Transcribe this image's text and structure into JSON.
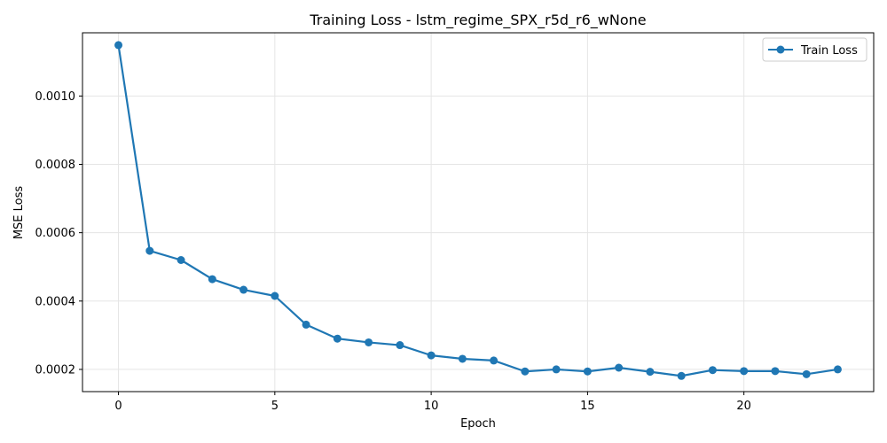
{
  "chart_data": {
    "type": "line",
    "title": "Training Loss - lstm_regime_SPX_r5d_r6_wNone",
    "xlabel": "Epoch",
    "ylabel": "MSE Loss",
    "xlim": [
      -1.15,
      24.15
    ],
    "ylim": [
      0.000135,
      0.001185
    ],
    "x_ticks": [
      0,
      5,
      10,
      15,
      20
    ],
    "y_ticks": [
      0.0002,
      0.0004,
      0.0006,
      0.0008,
      0.001
    ],
    "y_tick_labels": [
      "0.0002",
      "0.0004",
      "0.0006",
      "0.0008",
      "0.0010"
    ],
    "grid": true,
    "legend_position": "top-right",
    "series": [
      {
        "name": "Train Loss",
        "color": "#1f77b4",
        "x": [
          0,
          1,
          2,
          3,
          4,
          5,
          6,
          7,
          8,
          9,
          10,
          11,
          12,
          13,
          14,
          15,
          16,
          17,
          18,
          19,
          20,
          21,
          22,
          23
        ],
        "y": [
          0.001149,
          0.000547,
          0.00052,
          0.000464,
          0.000433,
          0.000415,
          0.000331,
          0.00029,
          0.000279,
          0.000271,
          0.000241,
          0.000231,
          0.000226,
          0.000194,
          0.0002,
          0.000194,
          0.000205,
          0.000193,
          0.000181,
          0.000198,
          0.000195,
          0.000195,
          0.000186,
          0.0002
        ]
      }
    ]
  }
}
